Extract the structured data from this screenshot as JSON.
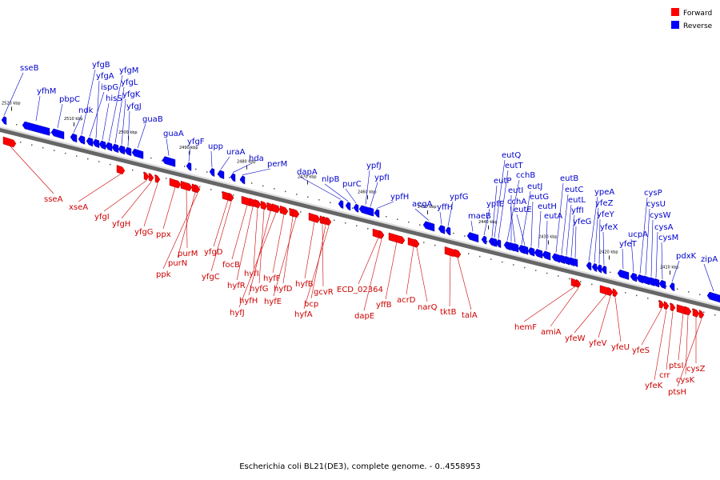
{
  "caption": "Escherichia coli BL21(DE3), complete genome. - 0..4558953",
  "legend": [
    {
      "label": "Forward",
      "color": "#ff0000"
    },
    {
      "label": "Reverse",
      "color": "#0000ff"
    }
  ],
  "kbp_ticks": [
    "2520 kbp",
    "2510 kbp",
    "2500 kbp",
    "2490 kbp",
    "2480 kbp",
    "2470 kbp",
    "2460 kbp",
    "2450 kbp",
    "2440 kbp",
    "2430 kbp",
    "2420 kbp",
    "2410 kbp"
  ],
  "reverse_genes": [
    "sseB",
    "yfhM",
    "pbpC",
    "ndk",
    "yfgB",
    "ispG",
    "yfgA",
    "hisS",
    "yfgM",
    "yfgL",
    "yfgK",
    "yfgJ",
    "guaB",
    "guaA",
    "yfgF",
    "upp",
    "uraA",
    "hda",
    "perM",
    "dapA",
    "nlpB",
    "purC",
    "ypfJ",
    "ypfI",
    "ypfH",
    "aegA",
    "yffH",
    "ypfG",
    "maeB",
    "ypfE",
    "eutP",
    "eutQ",
    "eutT",
    "cchB",
    "eutI",
    "cchA",
    "eutJ",
    "eutE",
    "eutG",
    "eutH",
    "eutA",
    "eutB",
    "eutC",
    "eutL",
    "yffI",
    "yfeG",
    "ypeA",
    "yfeZ",
    "yfeY",
    "yfeX",
    "yfeT",
    "ucpA",
    "cysP",
    "cysU",
    "cysW",
    "cysA",
    "cysM",
    "pdxK",
    "zipA"
  ],
  "forward_genes": [
    "sseA",
    "xseA",
    "yfgI",
    "yfgH",
    "yfgG",
    "ppx",
    "purM",
    "purN",
    "ppk",
    "yfgD",
    "yfgC",
    "focB",
    "hyfR",
    "hyfI",
    "hyfG",
    "hyfH",
    "hyfJ",
    "hyfF",
    "hyfD",
    "hyfE",
    "hyfB",
    "gcvR",
    "bcp",
    "hyfA",
    "ECD_02364",
    "dapE",
    "yffB",
    "acrD",
    "narQ",
    "tktB",
    "talA",
    "hemF",
    "amiA",
    "yfeW",
    "yfeV",
    "yfeU",
    "yfeS",
    "yfeK",
    "crr",
    "ptsI",
    "cysK",
    "cysZ",
    "ptsH"
  ]
}
